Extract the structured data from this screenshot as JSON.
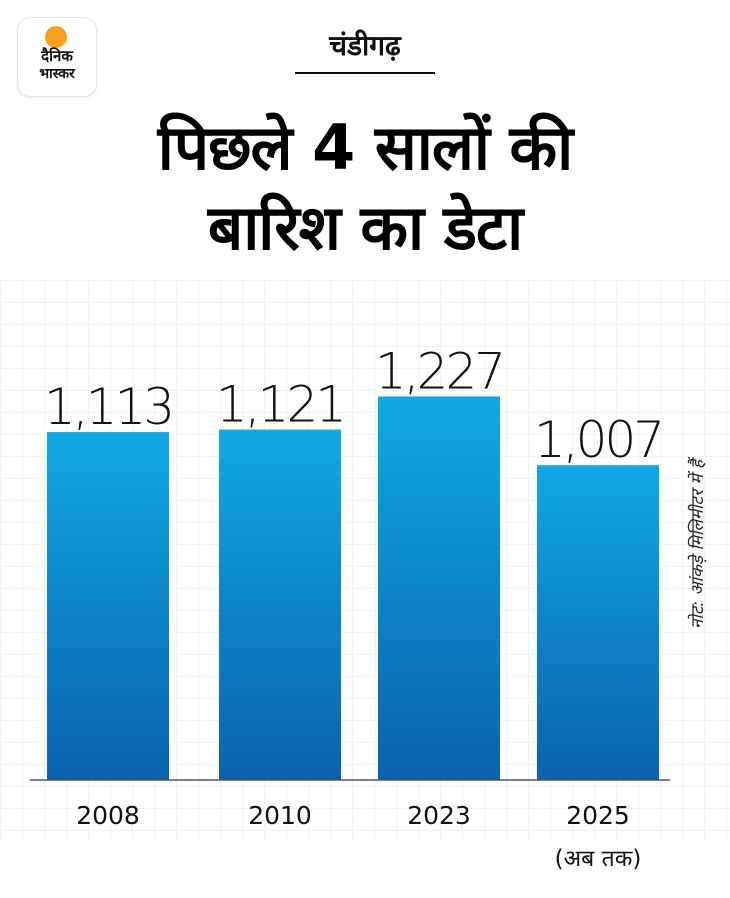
{
  "brand": {
    "logo_line1": "दैनिक",
    "logo_line2": "भास्कर",
    "logo_accent": "#f7a21b"
  },
  "header": {
    "city": "चंडीगढ़",
    "title_line1": "पिछले 4 सालों की",
    "title_line2": "बारिश का डेटा"
  },
  "note": "नोट: आंकड़े मिलिमीटर में हैं",
  "colors": {
    "bar_top": "#0fa9e6",
    "bar_bottom": "#0a62ad",
    "axis": "#555555"
  },
  "chart_data": {
    "type": "bar",
    "categories": [
      "2008",
      "2010",
      "2023",
      "2025"
    ],
    "category_sublabels": [
      "",
      "",
      "",
      "(अब तक)"
    ],
    "values": [
      1113,
      1121,
      1227,
      1007
    ],
    "value_labels": [
      "1,113",
      "1,121",
      "1,227",
      "1,007"
    ],
    "title": "पिछले 4 सालों की बारिश का डेटा",
    "xlabel": "",
    "ylabel": "",
    "grid": false,
    "legend": "none"
  }
}
